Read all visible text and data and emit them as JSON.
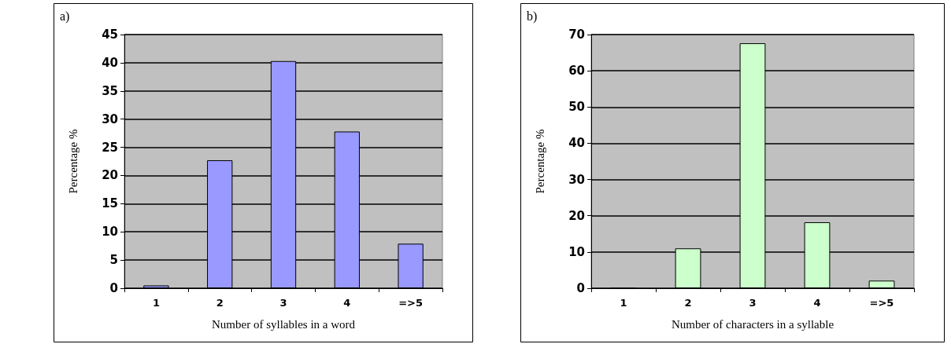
{
  "chart_data": [
    {
      "type": "bar",
      "title": "a)",
      "xlabel": "Number of syllables in a word",
      "ylabel": "Percentage %",
      "categories": [
        "1",
        "2",
        "3",
        "4",
        "=>5"
      ],
      "values": [
        0.5,
        22.7,
        40.3,
        27.8,
        7.9
      ],
      "color": "#9999ff",
      "ylim": [
        0,
        45
      ],
      "yticks": [
        0,
        5,
        10,
        15,
        20,
        25,
        30,
        35,
        40,
        45
      ],
      "grid": "y"
    },
    {
      "type": "bar",
      "title": "b)",
      "xlabel": "Number of characters in a syllable",
      "ylabel": "Percentage %",
      "categories": [
        "1",
        "2",
        "3",
        "4",
        "=>5"
      ],
      "values": [
        0,
        11,
        67.6,
        18.2,
        2.1
      ],
      "color": "#ccffcc",
      "ylim": [
        0,
        70
      ],
      "yticks": [
        0,
        10,
        20,
        30,
        40,
        50,
        60,
        70
      ],
      "grid": "y"
    }
  ]
}
